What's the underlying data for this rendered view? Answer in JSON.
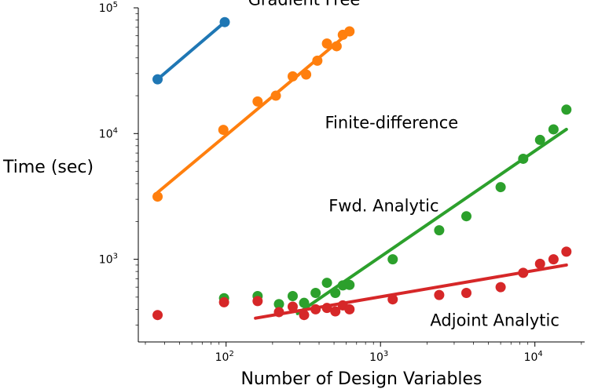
{
  "chart_data": {
    "type": "scatter",
    "xlabel": "Number of Design Variables",
    "ylabel": "Time (sec)",
    "xscale": "log",
    "yscale": "log",
    "xlim": [
      27,
      21000
    ],
    "ylim": [
      220,
      100000
    ],
    "xticks": [
      {
        "value": 100,
        "base": "10",
        "exp": "2"
      },
      {
        "value": 1000,
        "base": "10",
        "exp": "3"
      },
      {
        "value": 10000,
        "base": "10",
        "exp": "4"
      }
    ],
    "yticks": [
      {
        "value": 1000,
        "base": "10",
        "exp": "3"
      },
      {
        "value": 10000,
        "base": "10",
        "exp": "4"
      },
      {
        "value": 100000,
        "base": "10",
        "exp": "5"
      }
    ],
    "grid": false,
    "series": [
      {
        "name": "Gradient Free",
        "color": "#1f77b4",
        "points": [
          [
            36,
            27000
          ],
          [
            98,
            77000
          ]
        ],
        "fit": [
          [
            36,
            27000
          ],
          [
            98,
            77000
          ]
        ]
      },
      {
        "name": "Finite-difference",
        "color": "#ff7f0e",
        "points": [
          [
            36,
            3150
          ],
          [
            96,
            10700
          ],
          [
            160,
            18000
          ],
          [
            210,
            20000
          ],
          [
            270,
            28500
          ],
          [
            330,
            29500
          ],
          [
            390,
            38000
          ],
          [
            450,
            52000
          ],
          [
            520,
            49500
          ],
          [
            570,
            61000
          ],
          [
            630,
            65000
          ]
        ],
        "fit": [
          [
            36,
            3400
          ],
          [
            630,
            64000
          ]
        ]
      },
      {
        "name": "Fwd. Analytic",
        "color": "#2ca02c",
        "points": [
          [
            97,
            490
          ],
          [
            160,
            510
          ],
          [
            220,
            440
          ],
          [
            270,
            510
          ],
          [
            320,
            450
          ],
          [
            380,
            540
          ],
          [
            450,
            650
          ],
          [
            510,
            540
          ],
          [
            570,
            620
          ],
          [
            630,
            625
          ],
          [
            1200,
            1000
          ],
          [
            2400,
            1700
          ],
          [
            3600,
            2200
          ],
          [
            6000,
            3750
          ],
          [
            8400,
            6300
          ],
          [
            10800,
            8900
          ],
          [
            13200,
            10800
          ],
          [
            16000,
            15500
          ]
        ],
        "fit": [
          [
            290,
            370
          ],
          [
            16000,
            10800
          ]
        ]
      },
      {
        "name": "Adjoint Analytic",
        "color": "#d62728",
        "points": [
          [
            36,
            360
          ],
          [
            97,
            455
          ],
          [
            160,
            465
          ],
          [
            220,
            380
          ],
          [
            270,
            420
          ],
          [
            320,
            360
          ],
          [
            380,
            400
          ],
          [
            450,
            410
          ],
          [
            510,
            385
          ],
          [
            570,
            430
          ],
          [
            630,
            400
          ],
          [
            1200,
            480
          ],
          [
            2400,
            520
          ],
          [
            3600,
            540
          ],
          [
            6000,
            600
          ],
          [
            8400,
            780
          ],
          [
            10800,
            920
          ],
          [
            13200,
            1000
          ],
          [
            16000,
            1150
          ]
        ],
        "fit": [
          [
            155,
            340
          ],
          [
            16000,
            900
          ]
        ]
      }
    ],
    "annotations": [
      {
        "text": "Gradient Free",
        "anchor": [
          320,
          105000
        ]
      },
      {
        "text": "Finite-difference",
        "anchor": [
          1180,
          11000
        ]
      },
      {
        "text": "Fwd. Analytic",
        "anchor": [
          1050,
          2400
        ]
      },
      {
        "text": "Adjoint Analytic",
        "anchor": [
          5500,
          295
        ]
      }
    ]
  }
}
